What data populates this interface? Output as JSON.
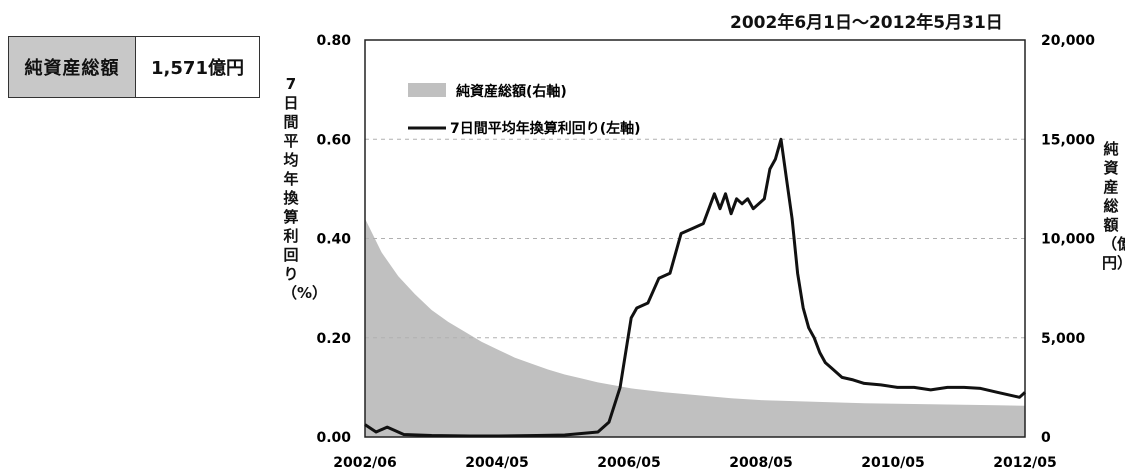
{
  "summary": {
    "label": "純資産総額",
    "value": "1,571億円"
  },
  "chart_data": {
    "type": "line",
    "period": "2002年6月1日～2012年5月31日",
    "x_ticks": [
      "2002/06",
      "2004/05",
      "2006/05",
      "2008/05",
      "2010/05",
      "2012/05"
    ],
    "y_left": {
      "label": "7日間平均年換算利回り（%）",
      "range": [
        0,
        0.8
      ],
      "ticks": [
        "0.00",
        "0.20",
        "0.40",
        "0.60",
        "0.80"
      ]
    },
    "y_right": {
      "label": "純資産総額（億円）",
      "range": [
        0,
        20000
      ],
      "ticks": [
        "0",
        "5,000",
        "10,000",
        "15,000",
        "20,000"
      ]
    },
    "grid": "dashed",
    "legend_position": "top-left",
    "series": [
      {
        "name": "純資産総額(右軸)",
        "axis": "right",
        "style": "area",
        "color": "#c0c0c0",
        "x": [
          "2002-06",
          "2002-09",
          "2002-12",
          "2003-03",
          "2003-06",
          "2003-09",
          "2003-12",
          "2004-03",
          "2004-06",
          "2004-09",
          "2004-12",
          "2005-03",
          "2005-06",
          "2005-09",
          "2005-12",
          "2006-03",
          "2006-06",
          "2006-09",
          "2006-12",
          "2007-06",
          "2007-12",
          "2008-06",
          "2008-12",
          "2009-06",
          "2009-12",
          "2010-06",
          "2010-12",
          "2011-06",
          "2011-12",
          "2012-05"
        ],
        "values": [
          11000,
          9300,
          8100,
          7200,
          6400,
          5800,
          5300,
          4800,
          4400,
          4000,
          3700,
          3400,
          3150,
          2950,
          2750,
          2600,
          2450,
          2350,
          2250,
          2100,
          1950,
          1850,
          1800,
          1750,
          1700,
          1680,
          1650,
          1620,
          1600,
          1571
        ]
      },
      {
        "name": "7日間平均年換算利回り(左軸)",
        "axis": "left",
        "style": "line",
        "color": "#111111",
        "x": [
          "2002-06",
          "2002-08",
          "2002-10",
          "2003-01",
          "2003-06",
          "2004-01",
          "2004-06",
          "2005-01",
          "2005-06",
          "2005-12",
          "2006-02",
          "2006-04",
          "2006-06",
          "2006-07",
          "2006-09",
          "2006-11",
          "2007-01",
          "2007-03",
          "2007-05",
          "2007-07",
          "2007-09",
          "2007-10",
          "2007-11",
          "2007-12",
          "2008-01",
          "2008-02",
          "2008-03",
          "2008-04",
          "2008-05",
          "2008-06",
          "2008-07",
          "2008-08",
          "2008-09",
          "2008-10",
          "2008-11",
          "2008-12",
          "2009-01",
          "2009-02",
          "2009-03",
          "2009-04",
          "2009-05",
          "2009-06",
          "2009-08",
          "2009-10",
          "2009-12",
          "2010-03",
          "2010-06",
          "2010-09",
          "2010-12",
          "2011-03",
          "2011-06",
          "2011-09",
          "2011-12",
          "2012-02",
          "2012-04",
          "2012-05"
        ],
        "values": [
          0.025,
          0.01,
          0.02,
          0.005,
          0.003,
          0.002,
          0.002,
          0.003,
          0.004,
          0.01,
          0.03,
          0.1,
          0.24,
          0.26,
          0.27,
          0.32,
          0.33,
          0.41,
          0.42,
          0.43,
          0.49,
          0.46,
          0.49,
          0.45,
          0.48,
          0.47,
          0.48,
          0.46,
          0.47,
          0.48,
          0.54,
          0.56,
          0.6,
          0.52,
          0.44,
          0.33,
          0.26,
          0.22,
          0.2,
          0.17,
          0.15,
          0.14,
          0.12,
          0.115,
          0.108,
          0.105,
          0.1,
          0.1,
          0.095,
          0.1,
          0.1,
          0.098,
          0.09,
          0.085,
          0.08,
          0.09
        ]
      }
    ]
  }
}
